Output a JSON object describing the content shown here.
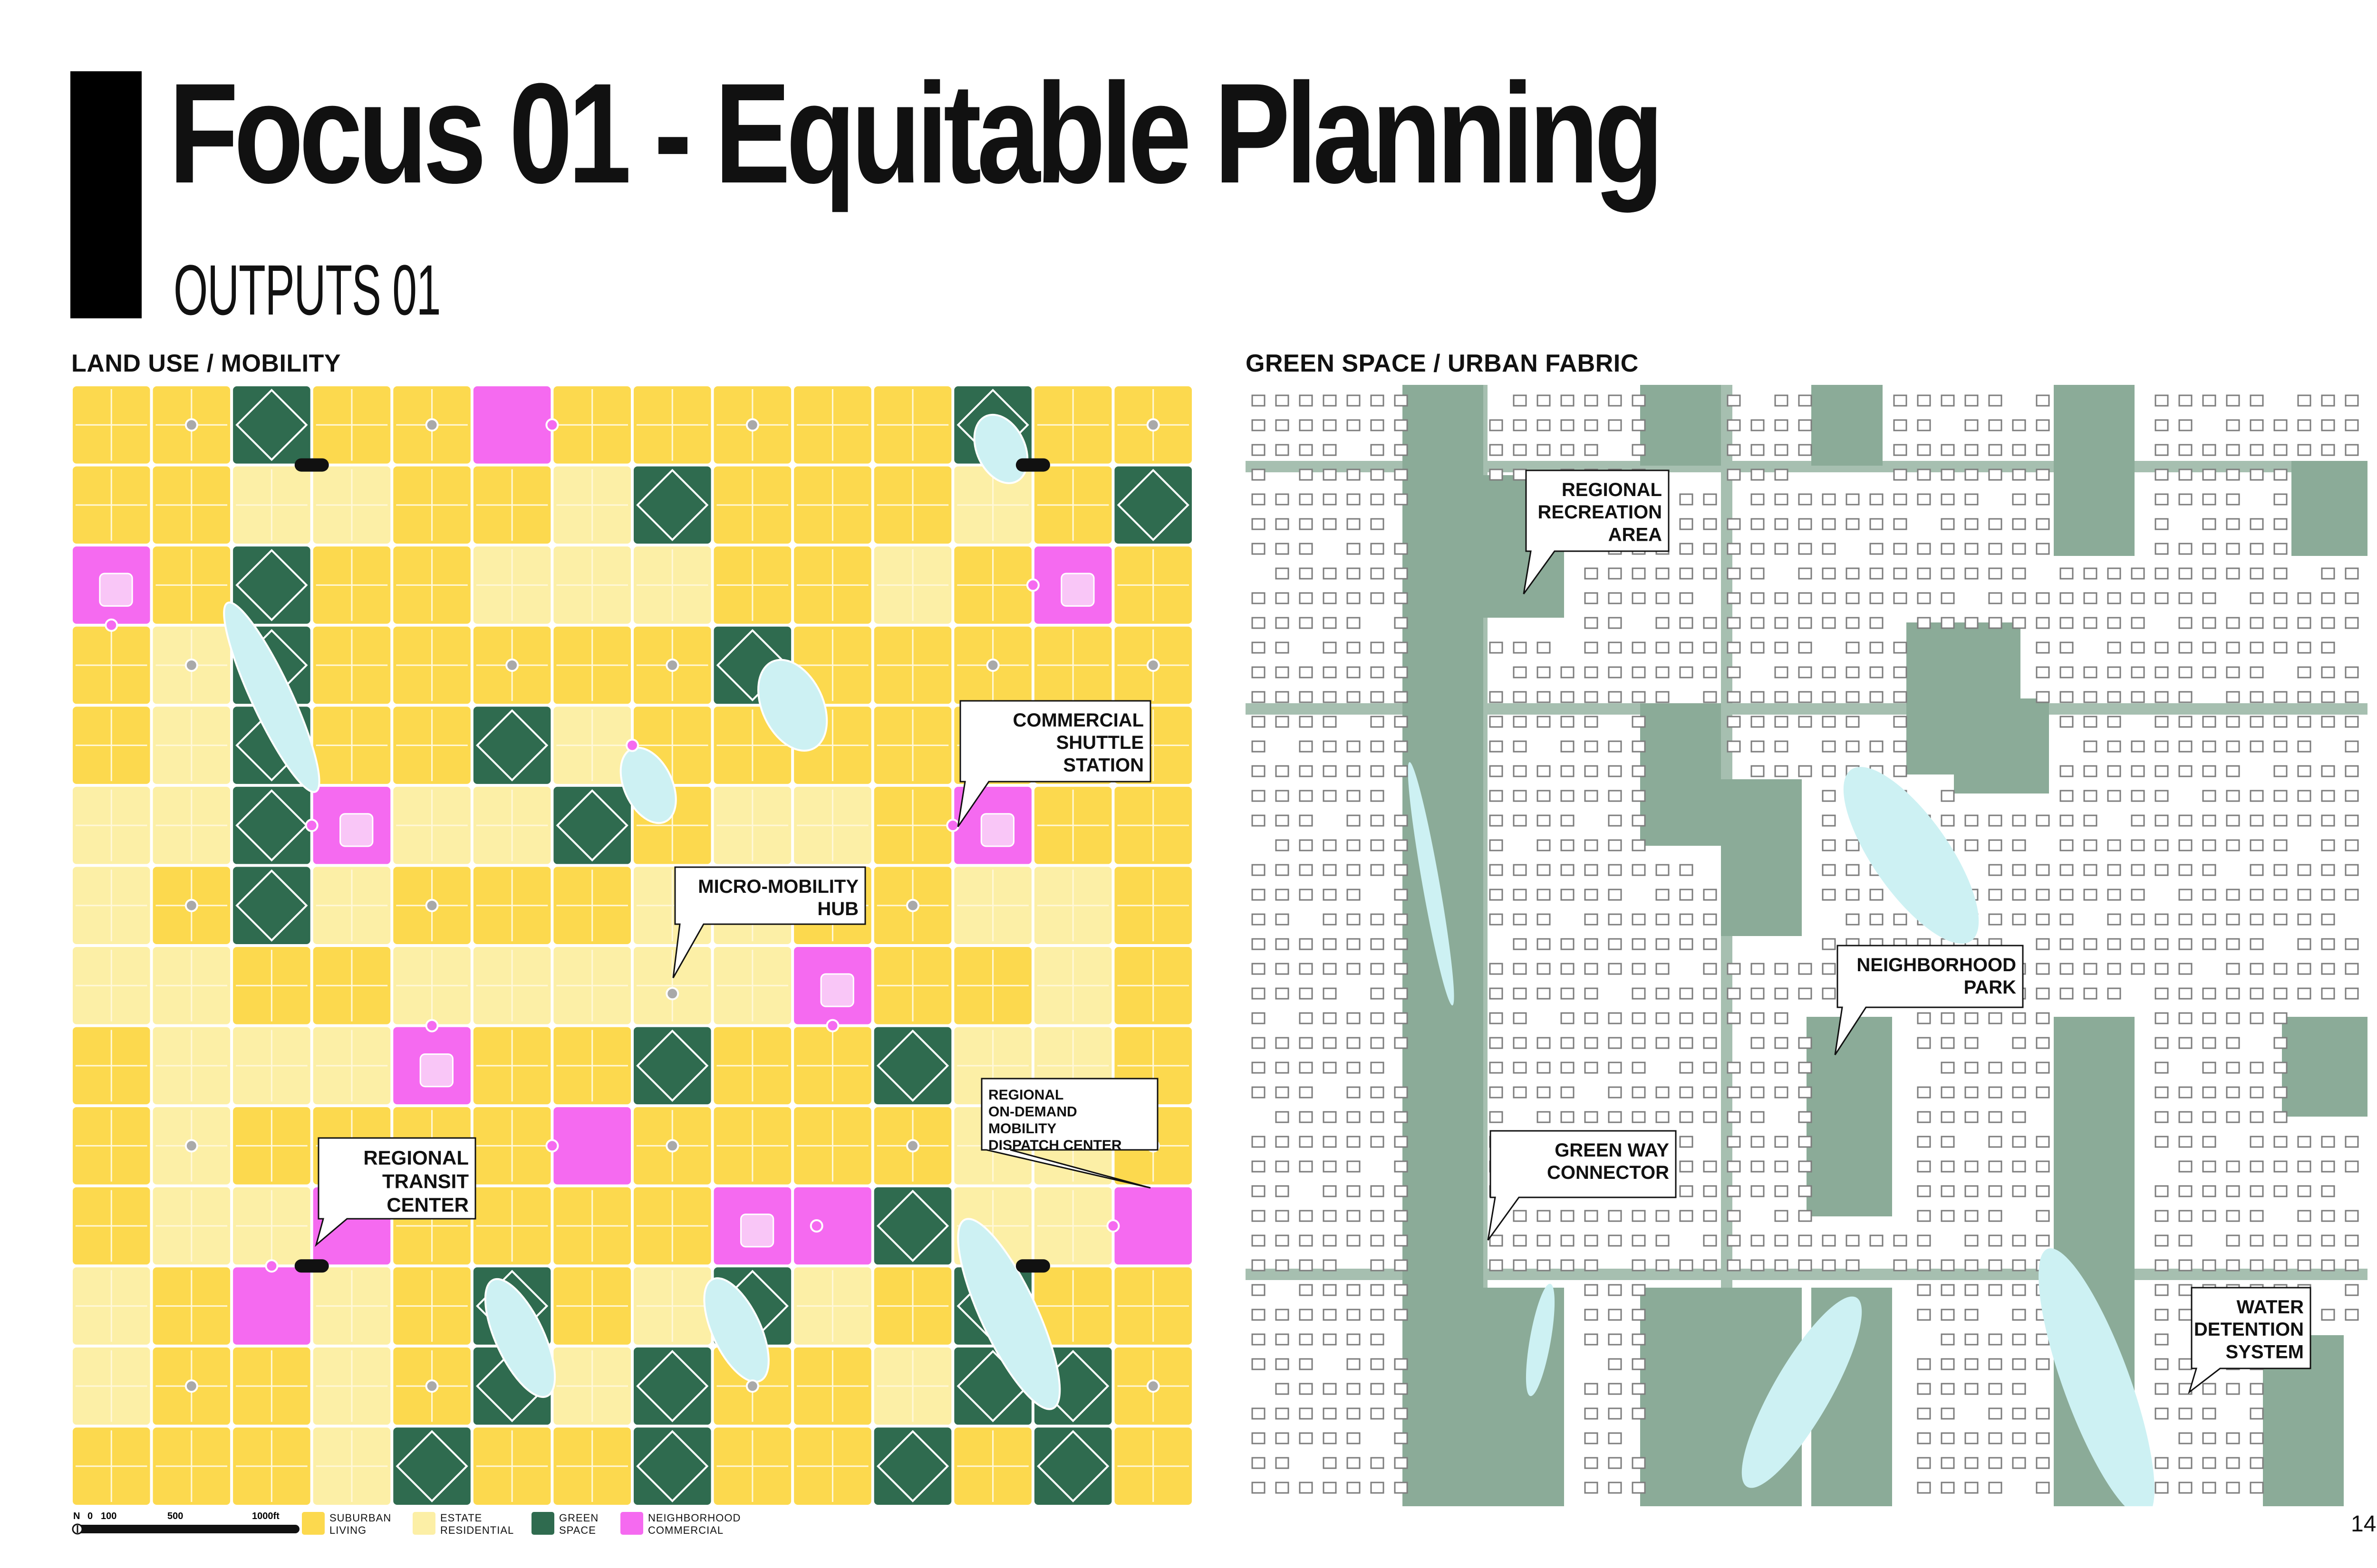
{
  "header": {
    "title": "Focus 01 - Equitable Planning",
    "subtitle": "OUTPUTS 01"
  },
  "panels": {
    "left_label": "LAND USE / MOBILITY",
    "right_label": "GREEN SPACE / URBAN FABRIC"
  },
  "callouts_left": {
    "commercial_shuttle": [
      "COMMERCIAL",
      "SHUTTLE",
      "STATION"
    ],
    "micro_mobility": [
      "MICRO-MOBILITY",
      "HUB"
    ],
    "on_demand": [
      "REGIONAL",
      "ON-DEMAND",
      "MOBILITY",
      "DISPATCH CENTER"
    ],
    "transit_center": [
      "REGIONAL",
      "TRANSIT",
      "CENTER"
    ]
  },
  "callouts_right": {
    "recreation": [
      "REGIONAL",
      "RECREATION",
      "AREA"
    ],
    "neighborhood_park": [
      "NEIGHBORHOOD",
      "PARK"
    ],
    "green_way": [
      "GREEN WAY",
      "CONNECTOR"
    ],
    "water_detention": [
      "WATER",
      "DETENTION",
      "SYSTEM"
    ]
  },
  "scale_bar": {
    "north": "N",
    "ticks": [
      "0",
      "100",
      "500",
      "1000ft"
    ]
  },
  "legend": [
    {
      "key": "suburban",
      "label": "SUBURBAN\nLIVING",
      "color": "#fcd94e"
    },
    {
      "key": "estate",
      "label": "ESTATE\nRESIDENTIAL",
      "color": "#fcefa6"
    },
    {
      "key": "green",
      "label": "GREEN\nSPACE",
      "color": "#2f6b4f"
    },
    {
      "key": "commercial",
      "label": "NEIGHBORHOOD\nCOMMERCIAL",
      "color": "#f56af0"
    }
  ],
  "colors": {
    "suburban": "#fcd94e",
    "estate": "#fcefa6",
    "green": "#2f6b4f",
    "commercial": "#f56af0",
    "water": "#cdf1f3",
    "greenspace_light": "#8bab98",
    "road_light": "#a6bfb0"
  },
  "page_number": "14"
}
